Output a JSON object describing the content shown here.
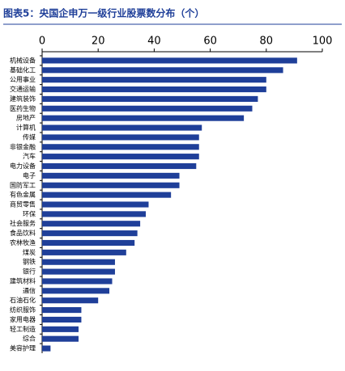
{
  "chart_data": {
    "type": "hbar",
    "title": "图表5：央国企申万一级行业股票数分布（个）",
    "categories": [
      "机械设备",
      "基础化工",
      "公用事业",
      "交通运输",
      "建筑装饰",
      "医药生物",
      "房地产",
      "计算机",
      "传媒",
      "非银金融",
      "汽车",
      "电力设备",
      "电子",
      "国防军工",
      "有色金属",
      "商贸零售",
      "环保",
      "社会服务",
      "食品饮料",
      "农林牧渔",
      "煤炭",
      "钢铁",
      "银行",
      "建筑材料",
      "通信",
      "石油石化",
      "纺织服饰",
      "家用电器",
      "轻工制造",
      "综合",
      "美容护理"
    ],
    "values": [
      91,
      86,
      80,
      80,
      77,
      75,
      72,
      57,
      56,
      56,
      56,
      55,
      49,
      49,
      46,
      38,
      37,
      35,
      34,
      33,
      30,
      26,
      26,
      25,
      24,
      20,
      14,
      14,
      13,
      13,
      3
    ],
    "color": "#1f3f99",
    "xlim": [
      0,
      100
    ],
    "xticks": [
      0,
      20,
      40,
      60,
      80,
      100
    ],
    "grid": false
  }
}
